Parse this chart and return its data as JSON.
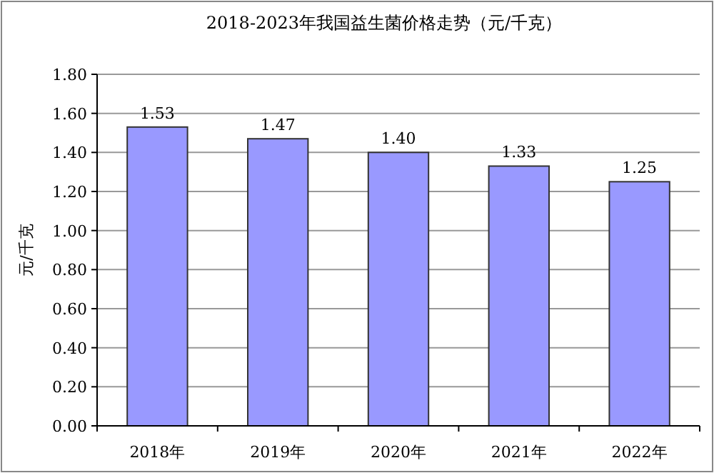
{
  "chart_data": {
    "type": "bar",
    "title": "2018-2023年我国益生菌价格走势（元/千克）",
    "ylabel": "元/千克",
    "categories": [
      "2018年",
      "2019年",
      "2020年",
      "2021年",
      "2022年"
    ],
    "values": [
      1.53,
      1.47,
      1.4,
      1.33,
      1.25
    ],
    "color": "#9999ff",
    "value_labels": [
      "1.53",
      "1.47",
      "1.40",
      "1.33",
      "1.25"
    ],
    "ylim": [
      0,
      1.8
    ],
    "yticks": [
      {
        "value": 0,
        "label": "0.00"
      },
      {
        "value": 0.2,
        "label": "0.20"
      },
      {
        "value": 0.4,
        "label": "0.40"
      },
      {
        "value": 0.6,
        "label": "0.60"
      },
      {
        "value": 0.8,
        "label": "0.80"
      },
      {
        "value": 1.0,
        "label": "1.00"
      },
      {
        "value": 1.2,
        "label": "1.20"
      },
      {
        "value": 1.4,
        "label": "1.40"
      },
      {
        "value": 1.6,
        "label": "1.60"
      },
      {
        "value": 1.8,
        "label": "1.80"
      }
    ],
    "grid": "y"
  }
}
